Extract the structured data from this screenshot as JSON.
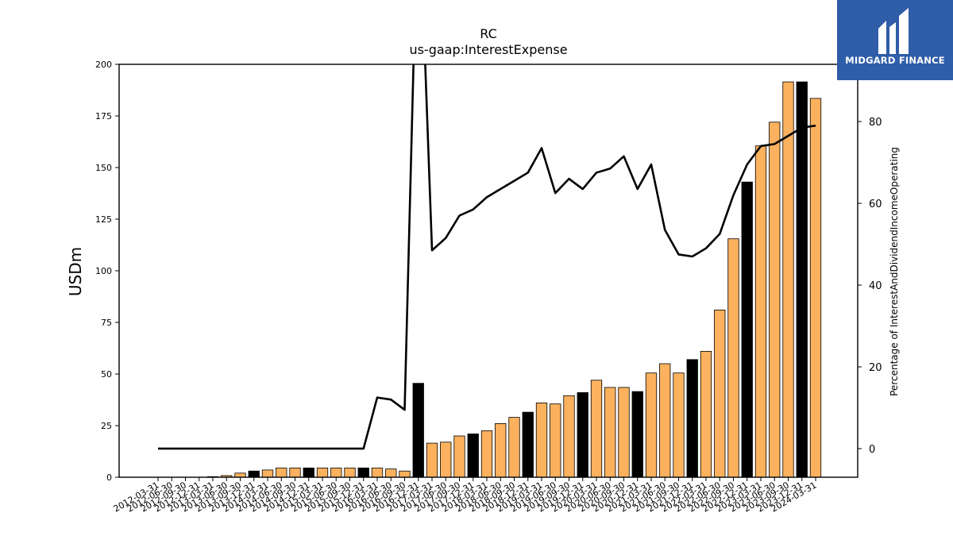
{
  "logo": {
    "text": "MIDGARD FINANCE"
  },
  "chart_data": {
    "type": "bar+line",
    "title": "RC",
    "subtitle": "us-gaap:InterestExpense",
    "ylabel": "USDm",
    "y2label": "Percentage of InterestAndDividendIncomeOperating",
    "ylim": [
      0,
      200
    ],
    "y2lim": [
      -7,
      94
    ],
    "yticks": [
      0,
      25,
      50,
      75,
      100,
      125,
      150,
      175,
      200
    ],
    "y2ticks": [
      0,
      20,
      40,
      60,
      80
    ],
    "colors": {
      "quarter": "#fbb15e",
      "annual": "#000000",
      "line": "#000000"
    },
    "categories": [
      "2012-03-31",
      "2012-06-30",
      "2012-09-30",
      "2012-12-31",
      "2013-03-31",
      "2013-06-30",
      "2013-09-30",
      "2013-12-31",
      "2014-03-31",
      "2014-06-30",
      "2014-09-30",
      "2014-12-31",
      "2015-03-31",
      "2015-06-30",
      "2015-09-30",
      "2015-12-31",
      "2016-03-31",
      "2016-06-30",
      "2016-09-30",
      "2016-12-31",
      "2017-03-31",
      "2017-06-30",
      "2017-09-30",
      "2017-12-31",
      "2018-03-31",
      "2018-06-30",
      "2018-09-30",
      "2018-12-31",
      "2019-03-31",
      "2019-06-30",
      "2019-09-30",
      "2019-12-31",
      "2020-03-31",
      "2020-06-30",
      "2020-09-30",
      "2020-12-31",
      "2021-03-31",
      "2021-06-30",
      "2021-09-30",
      "2021-12-31",
      "2022-03-31",
      "2022-06-30",
      "2022-09-30",
      "2022-12-31",
      "2023-03-31",
      "2023-06-30",
      "2023-09-30",
      "2023-12-31",
      "2024-03-31"
    ],
    "series": [
      {
        "type": "bar",
        "values": [
          0,
          0,
          0,
          0,
          0.3,
          0.8,
          2,
          3,
          3.5,
          4.5,
          4.5,
          4.5,
          4.5,
          4.5,
          4.5,
          4.5,
          4.5,
          4,
          3,
          45.5,
          16.5,
          17,
          20,
          21,
          22.5,
          26,
          29,
          31.5,
          36,
          35.5,
          39.5,
          41,
          47,
          43.5,
          43.5,
          41.5,
          50.5,
          55,
          50.5,
          57,
          61,
          81,
          115.5,
          143,
          160.5,
          172,
          191.5,
          191.5,
          183.5
        ],
        "annual": [
          false,
          false,
          false,
          false,
          false,
          false,
          false,
          true,
          false,
          false,
          false,
          true,
          false,
          false,
          false,
          true,
          false,
          false,
          false,
          true,
          false,
          false,
          false,
          true,
          false,
          false,
          false,
          true,
          false,
          false,
          false,
          true,
          false,
          false,
          false,
          true,
          false,
          false,
          false,
          true,
          false,
          false,
          false,
          true,
          false,
          false,
          false,
          true,
          false
        ]
      },
      {
        "type": "line",
        "axis": "y2",
        "values": [
          0,
          0,
          0,
          0,
          0,
          0,
          0,
          0,
          0,
          0,
          0,
          0,
          0,
          0,
          0,
          0,
          12.5,
          12,
          9.5,
          140,
          48.5,
          51.5,
          57,
          58.5,
          61.5,
          63.5,
          65.5,
          67.5,
          73.5,
          62.5,
          66,
          63.5,
          67.5,
          68.5,
          71.5,
          63.5,
          69.5,
          53.5,
          47.5,
          47,
          49,
          52.5,
          62,
          69.5,
          74,
          74.5,
          76.5,
          78.5,
          79
        ]
      }
    ]
  }
}
